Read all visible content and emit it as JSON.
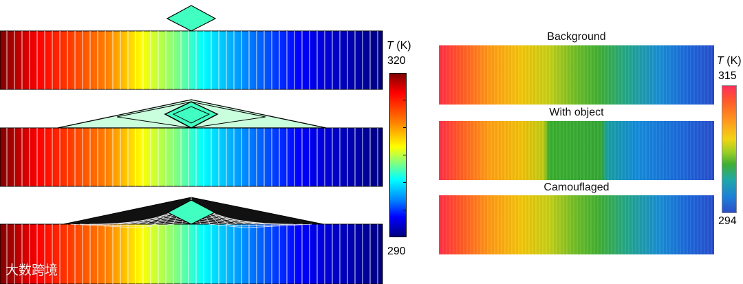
{
  "left_colorbar": {
    "title_symbol": "T",
    "title_unit": "(K)",
    "max_label": "320",
    "min_label": "290"
  },
  "right_panels": {
    "titles": [
      "Background",
      "With object",
      "Camouflaged"
    ]
  },
  "right_colorbar": {
    "title_symbol": "T",
    "title_unit": "(K)",
    "max_label": "315",
    "min_label": "294"
  },
  "watermark": "大数跨境",
  "colors": {
    "hot": "#800000",
    "cold": "#000080",
    "object_fill": "#40ffc0",
    "stroke": "#000000"
  }
}
